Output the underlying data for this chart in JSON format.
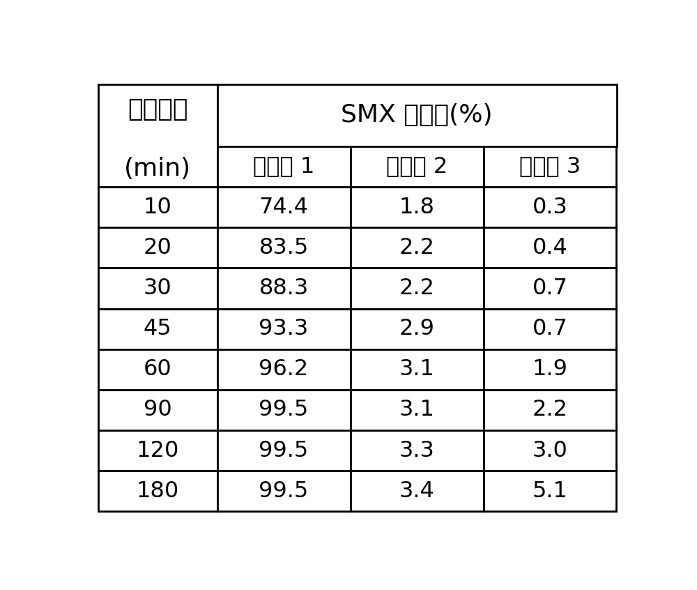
{
  "header_row1_col1": "反应时间",
  "header_row1_col2": "SMX 去除率(%)",
  "header_row2_col1": "(min)",
  "header_row2_col2": "处理组 1",
  "header_row2_col3": "处理组 2",
  "header_row2_col4": "处理组 3",
  "time_col": [
    10,
    20,
    30,
    45,
    60,
    90,
    120,
    180
  ],
  "group1": [
    "74.4",
    "83.5",
    "88.3",
    "93.3",
    "96.2",
    "99.5",
    "99.5",
    "99.5"
  ],
  "group2": [
    "1.8",
    "2.2",
    "2.2",
    "2.9",
    "3.1",
    "3.1",
    "3.3",
    "3.4"
  ],
  "group3": [
    "0.3",
    "0.4",
    "0.7",
    "0.7",
    "1.9",
    "2.2",
    "3.0",
    "5.1"
  ],
  "bg_color": "#ffffff",
  "text_color": "#000000",
  "line_color": "#000000",
  "font_size_header": 26,
  "font_size_subheader": 23,
  "font_size_data": 23,
  "figwidth": 10.0,
  "figheight": 8.46
}
